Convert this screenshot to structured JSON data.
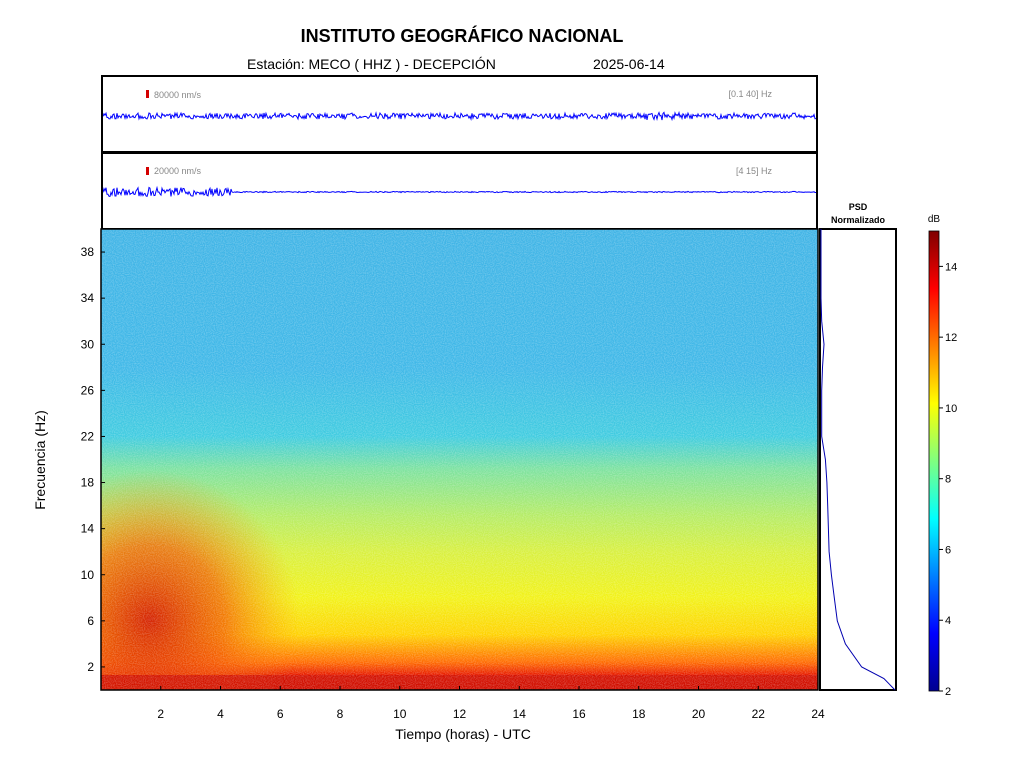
{
  "header": {
    "title": "INSTITUTO GEOGRÁFICO NACIONAL",
    "station_label": "Estación:  MECO ( HHZ ) - DECEPCIÓN",
    "date": "2025-06-14"
  },
  "traces": [
    {
      "scale": "80000 nm/s",
      "band": "[0.1 40] Hz",
      "color": "#0000ff"
    },
    {
      "scale": "20000 nm/s",
      "band": "[4 15] Hz",
      "color": "#0000ff"
    }
  ],
  "psd_panel": {
    "title_line1": "PSD",
    "title_line2": "Normalizado"
  },
  "colorbar": {
    "label": "dB",
    "range": [
      2,
      15
    ],
    "ticks": [
      "2",
      "4",
      "6",
      "8",
      "10",
      "12",
      "14"
    ]
  },
  "chart_data": {
    "type": "heatmap",
    "title": "INSTITUTO GEOGRÁFICO NACIONAL",
    "xlabel": "Tiempo (horas) - UTC",
    "ylabel": "Frecuencia  (Hz)",
    "xlim": [
      0,
      24
    ],
    "ylim": [
      0,
      40
    ],
    "x_ticks": [
      "2",
      "4",
      "6",
      "8",
      "10",
      "12",
      "14",
      "16",
      "18",
      "20",
      "22",
      "24"
    ],
    "y_ticks": [
      "2",
      "6",
      "10",
      "14",
      "18",
      "22",
      "26",
      "30",
      "34",
      "38"
    ],
    "colormap": "jet",
    "psd_normalized": {
      "freq": [
        0,
        1,
        2,
        4,
        6,
        8,
        10,
        12,
        14,
        16,
        18,
        20,
        22,
        24,
        26,
        28,
        30,
        32,
        34,
        36,
        38,
        40
      ],
      "value": [
        1.0,
        0.85,
        0.55,
        0.33,
        0.22,
        0.18,
        0.14,
        0.11,
        0.1,
        0.09,
        0.08,
        0.06,
        0.01,
        0.01,
        0.01,
        0.02,
        0.04,
        0.01,
        0.0,
        0.0,
        0.0,
        0.0
      ]
    }
  }
}
